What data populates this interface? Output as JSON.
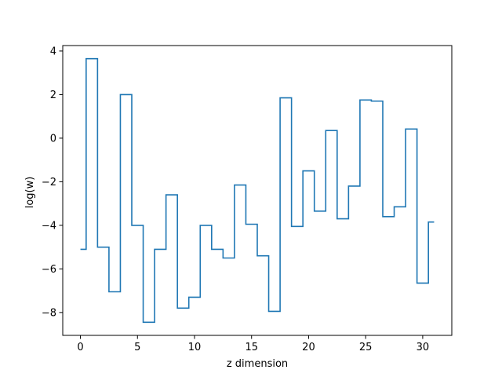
{
  "chart_data": {
    "type": "line",
    "step": "mid",
    "title": "",
    "xlabel": "z dimension",
    "ylabel": "log(w)",
    "xlim": [
      -1.55,
      32.55
    ],
    "ylim": [
      -9.05,
      4.25
    ],
    "xticks": [
      0,
      5,
      10,
      15,
      20,
      25,
      30
    ],
    "yticks": [
      -8,
      -6,
      -4,
      -2,
      0,
      2,
      4
    ],
    "xtick_labels": [
      "0",
      "5",
      "10",
      "15",
      "20",
      "25",
      "30"
    ],
    "ytick_labels": [
      "−8",
      "−6",
      "−4",
      "−2",
      "0",
      "2",
      "4"
    ],
    "grid": false,
    "legend": "none",
    "series": [
      {
        "color": "#1f77b4",
        "x": [
          0,
          1,
          2,
          3,
          4,
          5,
          6,
          7,
          8,
          9,
          10,
          11,
          12,
          13,
          14,
          15,
          16,
          17,
          18,
          19,
          20,
          21,
          22,
          23,
          24,
          25,
          26,
          27,
          28,
          29,
          30,
          31
        ],
        "y": [
          -5.1,
          3.65,
          -5.0,
          -7.05,
          2.0,
          -4.0,
          -8.45,
          -5.1,
          -2.6,
          -7.8,
          -7.3,
          -4.0,
          -5.1,
          -5.5,
          -2.15,
          -3.95,
          -5.4,
          -7.95,
          1.85,
          -4.05,
          -1.5,
          -3.35,
          0.35,
          -3.7,
          -2.2,
          1.75,
          1.7,
          -3.6,
          -3.15,
          0.42,
          -6.65,
          -3.85
        ]
      }
    ]
  }
}
